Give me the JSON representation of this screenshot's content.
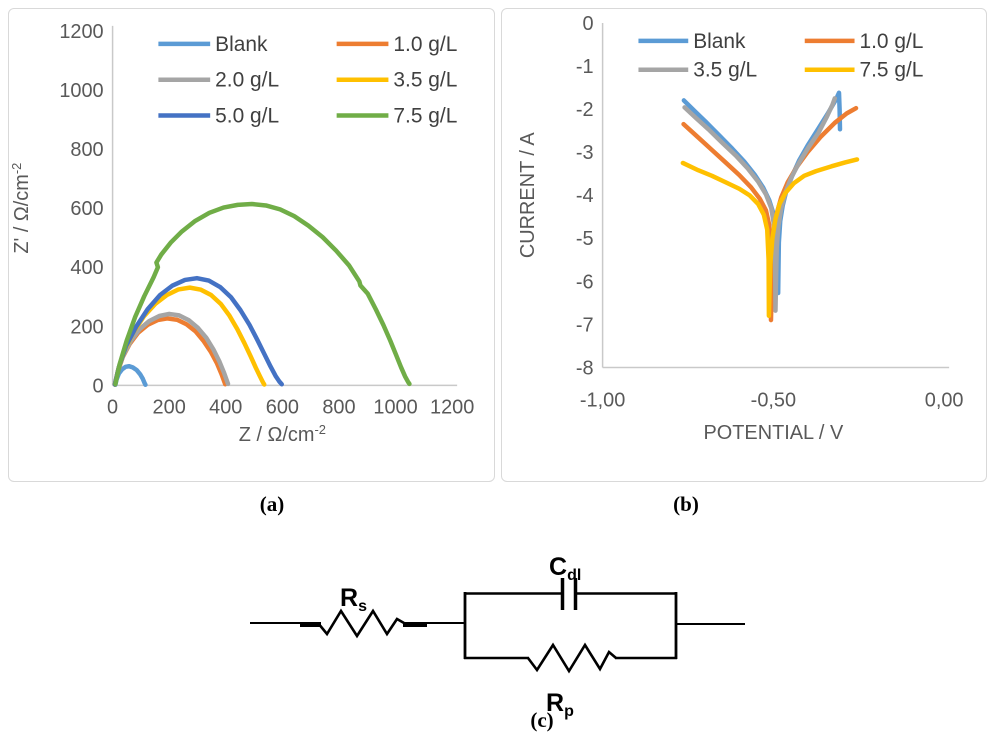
{
  "figure": {
    "captions": {
      "a": "(a)",
      "b": "(b)",
      "c": "(c)"
    }
  },
  "style": {
    "axis_line_color": "#C9C9C9",
    "tick_label_color": "#595959",
    "legend_text_color": "#404040",
    "palette": [
      "#5B9BD5",
      "#ED7D31",
      "#A5A5A5",
      "#FFC000",
      "#4472C4",
      "#70AD47"
    ]
  },
  "chart_data": [
    {
      "id": "nyquist",
      "type": "line",
      "title": "",
      "xlabel": "Z / Ω/cm",
      "xlabel_sup": "-2",
      "ylabel": "Z' / Ω/cm",
      "ylabel_sup": "-2",
      "xlim": [
        0,
        1200
      ],
      "ylim": [
        0,
        1200
      ],
      "x_ticks": [
        0,
        200,
        400,
        600,
        800,
        1000,
        1200
      ],
      "y_ticks": [
        0,
        200,
        400,
        600,
        800,
        1000,
        1200
      ],
      "grid": false,
      "legend_position": "top-inside",
      "legend_columns": 2,
      "series": [
        {
          "name": "Blank",
          "color": "#5B9BD5",
          "points": [
            [
              10,
              2
            ],
            [
              14,
              20
            ],
            [
              22,
              40
            ],
            [
              33,
              54
            ],
            [
              46,
              63
            ],
            [
              58,
              65
            ],
            [
              71,
              61
            ],
            [
              85,
              52
            ],
            [
              97,
              38
            ],
            [
              107,
              22
            ],
            [
              113,
              8
            ],
            [
              116,
              2
            ]
          ]
        },
        {
          "name": "1.0 g/L",
          "color": "#ED7D31",
          "points": [
            [
              8,
              3
            ],
            [
              18,
              45
            ],
            [
              36,
              96
            ],
            [
              60,
              140
            ],
            [
              90,
              178
            ],
            [
              124,
              205
            ],
            [
              159,
              221
            ],
            [
              193,
              227
            ],
            [
              228,
              222
            ],
            [
              261,
              207
            ],
            [
              293,
              183
            ],
            [
              321,
              151
            ],
            [
              347,
              114
            ],
            [
              369,
              74
            ],
            [
              385,
              38
            ],
            [
              394,
              14
            ],
            [
              398,
              4
            ]
          ]
        },
        {
          "name": "2.0 g/L",
          "color": "#A5A5A5",
          "points": [
            [
              8,
              3
            ],
            [
              19,
              50
            ],
            [
              38,
              102
            ],
            [
              64,
              150
            ],
            [
              95,
              190
            ],
            [
              130,
              218
            ],
            [
              165,
              235
            ],
            [
              200,
              242
            ],
            [
              235,
              237
            ],
            [
              269,
              221
            ],
            [
              301,
              195
            ],
            [
              331,
              161
            ],
            [
              356,
              122
            ],
            [
              378,
              80
            ],
            [
              394,
              42
            ],
            [
              404,
              16
            ],
            [
              408,
              5
            ]
          ]
        },
        {
          "name": "3.5 g/L",
          "color": "#FFC000",
          "points": [
            [
              8,
              3
            ],
            [
              21,
              58
            ],
            [
              44,
              122
            ],
            [
              75,
              182
            ],
            [
              111,
              234
            ],
            [
              151,
              276
            ],
            [
              192,
              306
            ],
            [
              233,
              325
            ],
            [
              273,
              331
            ],
            [
              312,
              324
            ],
            [
              348,
              306
            ],
            [
              382,
              276
            ],
            [
              413,
              236
            ],
            [
              441,
              190
            ],
            [
              466,
              143
            ],
            [
              488,
              98
            ],
            [
              506,
              60
            ],
            [
              521,
              30
            ],
            [
              531,
              11
            ],
            [
              536,
              3
            ]
          ]
        },
        {
          "name": "5.0 g/L",
          "color": "#4472C4",
          "points": [
            [
              8,
              3
            ],
            [
              22,
              62
            ],
            [
              48,
              134
            ],
            [
              84,
              200
            ],
            [
              124,
              258
            ],
            [
              168,
              306
            ],
            [
              212,
              338
            ],
            [
              256,
              357
            ],
            [
              298,
              363
            ],
            [
              340,
              355
            ],
            [
              380,
              333
            ],
            [
              418,
              299
            ],
            [
              452,
              255
            ],
            [
              484,
              205
            ],
            [
              512,
              153
            ],
            [
              537,
              105
            ],
            [
              558,
              64
            ],
            [
              576,
              32
            ],
            [
              590,
              12
            ],
            [
              598,
              4
            ]
          ]
        },
        {
          "name": "7.5 g/L",
          "color": "#70AD47",
          "points": [
            [
              10,
              4
            ],
            [
              25,
              72
            ],
            [
              50,
              152
            ],
            [
              80,
              232
            ],
            [
              112,
              302
            ],
            [
              145,
              366
            ],
            [
              160,
              400
            ],
            [
              155,
              416
            ],
            [
              172,
              443
            ],
            [
              205,
              483
            ],
            [
              245,
              521
            ],
            [
              292,
              557
            ],
            [
              342,
              584
            ],
            [
              392,
              602
            ],
            [
              442,
              611
            ],
            [
              492,
              614
            ],
            [
              542,
              609
            ],
            [
              592,
              596
            ],
            [
              642,
              573
            ],
            [
              692,
              541
            ],
            [
              742,
              502
            ],
            [
              790,
              456
            ],
            [
              835,
              407
            ],
            [
              872,
              352
            ],
            [
              876,
              338
            ],
            [
              902,
              310
            ],
            [
              930,
              258
            ],
            [
              957,
              205
            ],
            [
              981,
              152
            ],
            [
              1001,
              105
            ],
            [
              1019,
              62
            ],
            [
              1034,
              30
            ],
            [
              1044,
              12
            ],
            [
              1049,
              5
            ]
          ]
        }
      ]
    },
    {
      "id": "polarization",
      "type": "line",
      "title": "",
      "xlabel": "POTENTIAL / V",
      "xlabel_sup": "",
      "ylabel": "CURRENT / A",
      "ylabel_sup": "",
      "xlim": [
        -1.0,
        0.0
      ],
      "ylim": [
        -8,
        0
      ],
      "x_ticks": [
        {
          "v": -1.0,
          "label": "-1,00"
        },
        {
          "v": -0.5,
          "label": "-0,50"
        },
        {
          "v": 0.0,
          "label": "0,00"
        }
      ],
      "y_ticks": [
        0,
        -1,
        -2,
        -3,
        -4,
        -5,
        -6,
        -7,
        -8
      ],
      "grid": false,
      "legend_position": "top-inside",
      "legend_columns": 2,
      "series": [
        {
          "name": "Blank",
          "color": "#5B9BD5",
          "points": [
            [
              -0.762,
              -1.8
            ],
            [
              -0.73,
              -2.05
            ],
            [
              -0.7,
              -2.28
            ],
            [
              -0.66,
              -2.6
            ],
            [
              -0.62,
              -2.92
            ],
            [
              -0.585,
              -3.22
            ],
            [
              -0.555,
              -3.52
            ],
            [
              -0.53,
              -3.82
            ],
            [
              -0.512,
              -4.12
            ],
            [
              -0.5,
              -4.42
            ],
            [
              -0.492,
              -4.75
            ],
            [
              -0.488,
              -5.3
            ],
            [
              -0.486,
              -6.27
            ],
            [
              -0.484,
              -5.1
            ],
            [
              -0.48,
              -4.6
            ],
            [
              -0.473,
              -4.25
            ],
            [
              -0.462,
              -3.9
            ],
            [
              -0.445,
              -3.55
            ],
            [
              -0.425,
              -3.2
            ],
            [
              -0.4,
              -2.85
            ],
            [
              -0.372,
              -2.5
            ],
            [
              -0.342,
              -2.12
            ],
            [
              -0.318,
              -1.8
            ],
            [
              -0.308,
              -1.62
            ],
            [
              -0.306,
              -2.0
            ],
            [
              -0.305,
              -2.47
            ]
          ]
        },
        {
          "name": "1.0 g/L",
          "color": "#ED7D31",
          "points": [
            [
              -0.763,
              -2.35
            ],
            [
              -0.72,
              -2.66
            ],
            [
              -0.68,
              -2.95
            ],
            [
              -0.64,
              -3.24
            ],
            [
              -0.6,
              -3.53
            ],
            [
              -0.565,
              -3.82
            ],
            [
              -0.54,
              -4.08
            ],
            [
              -0.522,
              -4.35
            ],
            [
              -0.512,
              -4.7
            ],
            [
              -0.508,
              -5.3
            ],
            [
              -0.507,
              -6.9
            ],
            [
              -0.503,
              -5.3
            ],
            [
              -0.498,
              -4.8
            ],
            [
              -0.49,
              -4.42
            ],
            [
              -0.477,
              -4.05
            ],
            [
              -0.458,
              -3.7
            ],
            [
              -0.432,
              -3.35
            ],
            [
              -0.4,
              -3.0
            ],
            [
              -0.362,
              -2.65
            ],
            [
              -0.32,
              -2.32
            ],
            [
              -0.285,
              -2.1
            ],
            [
              -0.258,
              -1.98
            ]
          ]
        },
        {
          "name": "3.5 g/L",
          "color": "#A5A5A5",
          "points": [
            [
              -0.76,
              -1.96
            ],
            [
              -0.725,
              -2.22
            ],
            [
              -0.69,
              -2.47
            ],
            [
              -0.65,
              -2.78
            ],
            [
              -0.61,
              -3.08
            ],
            [
              -0.575,
              -3.38
            ],
            [
              -0.545,
              -3.68
            ],
            [
              -0.522,
              -3.98
            ],
            [
              -0.506,
              -4.3
            ],
            [
              -0.498,
              -4.7
            ],
            [
              -0.495,
              -5.3
            ],
            [
              -0.494,
              -6.68
            ],
            [
              -0.49,
              -5.2
            ],
            [
              -0.485,
              -4.7
            ],
            [
              -0.477,
              -4.3
            ],
            [
              -0.465,
              -3.95
            ],
            [
              -0.448,
              -3.6
            ],
            [
              -0.425,
              -3.25
            ],
            [
              -0.398,
              -2.9
            ],
            [
              -0.368,
              -2.55
            ],
            [
              -0.345,
              -2.2
            ],
            [
              -0.327,
              -1.9
            ],
            [
              -0.32,
              -1.75
            ]
          ]
        },
        {
          "name": "7.5 g/L",
          "color": "#FFC000",
          "points": [
            [
              -0.765,
              -3.25
            ],
            [
              -0.72,
              -3.42
            ],
            [
              -0.68,
              -3.55
            ],
            [
              -0.64,
              -3.7
            ],
            [
              -0.6,
              -3.85
            ],
            [
              -0.57,
              -4.0
            ],
            [
              -0.545,
              -4.2
            ],
            [
              -0.528,
              -4.45
            ],
            [
              -0.518,
              -4.8
            ],
            [
              -0.514,
              -5.5
            ],
            [
              -0.513,
              -6.8
            ],
            [
              -0.509,
              -5.6
            ],
            [
              -0.503,
              -5.0
            ],
            [
              -0.494,
              -4.55
            ],
            [
              -0.482,
              -4.2
            ],
            [
              -0.465,
              -3.95
            ],
            [
              -0.44,
              -3.72
            ],
            [
              -0.41,
              -3.55
            ],
            [
              -0.375,
              -3.44
            ],
            [
              -0.33,
              -3.33
            ],
            [
              -0.29,
              -3.24
            ],
            [
              -0.255,
              -3.17
            ]
          ]
        }
      ]
    }
  ],
  "circuit": {
    "labels": {
      "rs_base": "R",
      "rs_sub": "s",
      "cdl_base": "C",
      "cdl_sub": "dl",
      "rp_base": "R",
      "rp_sub": "p"
    }
  }
}
